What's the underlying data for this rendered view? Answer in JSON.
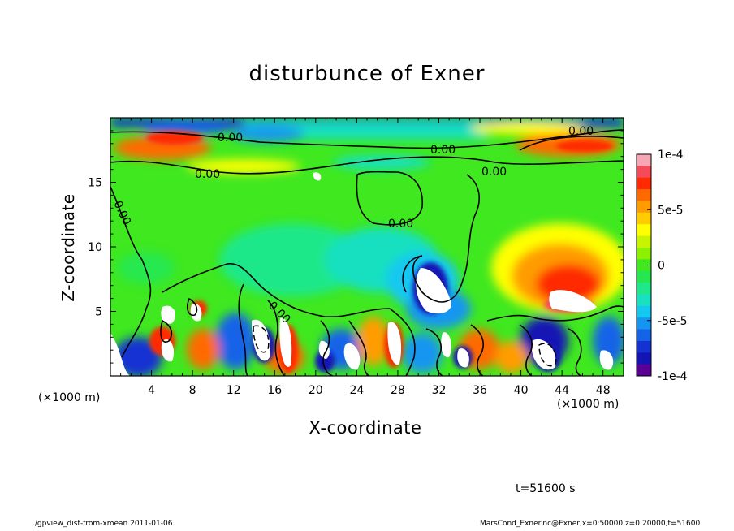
{
  "chart_data": {
    "type": "heatmap",
    "title": "disturbunce of Exner",
    "xlabel": "X-coordinate",
    "ylabel": "Z-coordinate",
    "x_unit": "(×1000 m)",
    "xlim": [
      0,
      50
    ],
    "ylim": [
      0,
      20
    ],
    "x_ticks": [
      4,
      8,
      12,
      16,
      20,
      24,
      28,
      32,
      36,
      40,
      44,
      48
    ],
    "y_ticks": [
      5,
      10,
      15
    ],
    "colorbar": {
      "range": [
        -0.0001,
        0.0001
      ],
      "tick_labels": [
        "1e-4",
        "5e-5",
        "0",
        "-5e-5",
        "-1e-4"
      ],
      "tick_values": [
        0.0001,
        5e-05,
        0,
        -5e-05,
        -0.0001
      ],
      "colors": [
        "#f7a6b4",
        "#f44a5a",
        "#ff2a00",
        "#ff6a00",
        "#ff9c00",
        "#ffcc00",
        "#ffff00",
        "#c8f400",
        "#8cf000",
        "#3fe81f",
        "#25e850",
        "#1fe88a",
        "#19e0c0",
        "#14c8f0",
        "#1496f0",
        "#1464e8",
        "#1432d2",
        "#1414b4",
        "#5a0096"
      ]
    },
    "contour_labels": [
      "0.00",
      "0.00",
      "0.00",
      "0.00",
      "0.00",
      "0.00",
      "0.00",
      "0.00"
    ],
    "time_label": "t=51600 s"
  },
  "footer": {
    "left": "./gpview_dist-from-xmean  2011-01-06",
    "right": "MarsCond_Exner.nc@Exner,x=0:50000,z=0:20000,t=51600"
  }
}
